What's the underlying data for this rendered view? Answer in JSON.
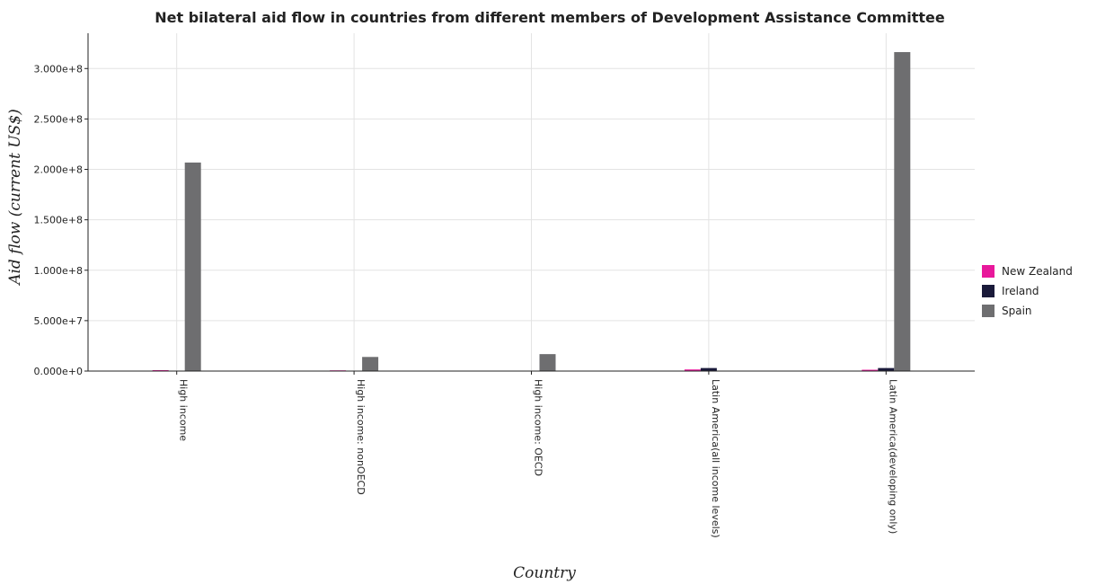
{
  "chart_data": {
    "type": "bar",
    "title": "Net bilateral aid flow in countries from different members of Development Assistance Committee",
    "xlabel": "Country",
    "ylabel": "Aid flow (current US$)",
    "categories": [
      "High income",
      "High income: nonOECD",
      "High income: OECD",
      "Latin America(all income levels)",
      "Latin America(developing only)"
    ],
    "series": [
      {
        "name": "New Zealand",
        "color": "#e8189b",
        "values": [
          900000,
          700000,
          100000,
          1600000,
          1300000
        ]
      },
      {
        "name": "Ireland",
        "color": "#1a1a3a",
        "values": [
          0,
          0,
          0,
          3000000,
          3000000
        ]
      },
      {
        "name": "Spain",
        "color": "#6e6e70",
        "values": [
          206800000,
          14000000,
          16800000,
          0,
          316300000
        ]
      }
    ],
    "ylim": [
      0,
      335000000
    ],
    "yticks": [
      0,
      50000000,
      100000000,
      150000000,
      200000000,
      250000000,
      300000000
    ],
    "ytick_labels": [
      "0.000e+0",
      "5.000e+7",
      "1.000e+8",
      "1.500e+8",
      "2.000e+8",
      "2.500e+8",
      "3.000e+8"
    ],
    "grid": true,
    "legend_position": "right"
  }
}
